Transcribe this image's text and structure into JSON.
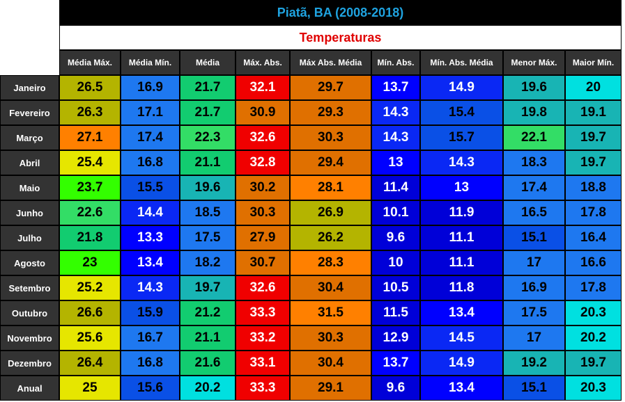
{
  "header": {
    "title": "Piatã, BA (2008-2018)",
    "subtitle": "Temperaturas"
  },
  "table": {
    "columns": [
      "Média Máx.",
      "Média Mín.",
      "Média",
      "Máx. Abs.",
      "Máx Abs. Média",
      "Mín. Abs.",
      "Mín. Abs. Média",
      "Menor Máx.",
      "Maior Mín."
    ],
    "rows": [
      {
        "label": "Janeiro",
        "values": [
          26.5,
          16.9,
          21.7,
          32.1,
          29.7,
          13.7,
          14.9,
          19.6,
          20
        ],
        "colors": [
          "#b4b400",
          "#1e78f0",
          "#12cc70",
          "#f00000",
          "#e07000",
          "#0000ff",
          "#0a28f4",
          "#18b4b4",
          "#00e0e0"
        ]
      },
      {
        "label": "Fevereiro",
        "values": [
          26.3,
          17.1,
          21.7,
          30.9,
          29.3,
          14.3,
          15.4,
          19.8,
          19.1
        ],
        "colors": [
          "#b4b400",
          "#1e78f0",
          "#12cc70",
          "#e07000",
          "#e07000",
          "#0a28f4",
          "#0a50e6",
          "#18b4b4",
          "#18b4b4"
        ]
      },
      {
        "label": "Março",
        "values": [
          27.1,
          17.4,
          22.3,
          32.6,
          30.3,
          14.3,
          15.7,
          22.1,
          19.7
        ],
        "colors": [
          "#ff8000",
          "#1e78f0",
          "#33dd66",
          "#f00000",
          "#e07000",
          "#0a28f4",
          "#0a50e6",
          "#33dd66",
          "#18b4b4"
        ]
      },
      {
        "label": "Abril",
        "values": [
          25.4,
          16.8,
          21.1,
          32.8,
          29.4,
          13,
          14.3,
          18.3,
          19.7
        ],
        "colors": [
          "#e6e600",
          "#1e78f0",
          "#12cc70",
          "#f00000",
          "#e07000",
          "#0000ff",
          "#0a28f4",
          "#1e78f0",
          "#18b4b4"
        ]
      },
      {
        "label": "Maio",
        "values": [
          23.7,
          15.5,
          19.6,
          30.2,
          28.1,
          11.4,
          13,
          17.4,
          18.8
        ],
        "colors": [
          "#33ff00",
          "#0a50e6",
          "#18b4b4",
          "#e07000",
          "#ff8000",
          "#0000d8",
          "#0000ff",
          "#1e78f0",
          "#1e78f0"
        ]
      },
      {
        "label": "Junho",
        "values": [
          22.6,
          14.4,
          18.5,
          30.3,
          26.9,
          10.1,
          11.9,
          16.5,
          17.8
        ],
        "colors": [
          "#33dd66",
          "#0a28f4",
          "#1e78f0",
          "#e07000",
          "#b4b400",
          "#0000d8",
          "#0000d8",
          "#1e78f0",
          "#1e78f0"
        ]
      },
      {
        "label": "Julho",
        "values": [
          21.8,
          13.3,
          17.5,
          27.9,
          26.2,
          9.6,
          11.1,
          15.1,
          16.4
        ],
        "colors": [
          "#12cc70",
          "#0000ff",
          "#1e78f0",
          "#e07000",
          "#b4b400",
          "#0000d8",
          "#0000d8",
          "#0a50e6",
          "#1e78f0"
        ]
      },
      {
        "label": "Agosto",
        "values": [
          23,
          13.4,
          18.2,
          30.7,
          28.3,
          10,
          11.1,
          17,
          16.6
        ],
        "colors": [
          "#33ff00",
          "#0000ff",
          "#1e78f0",
          "#e07000",
          "#ff8000",
          "#0000d8",
          "#0000d8",
          "#1e78f0",
          "#1e78f0"
        ]
      },
      {
        "label": "Setembro",
        "values": [
          25.2,
          14.3,
          19.7,
          32.6,
          30.4,
          10.5,
          11.8,
          16.9,
          17.8
        ],
        "colors": [
          "#e6e600",
          "#0a28f4",
          "#18b4b4",
          "#f00000",
          "#e07000",
          "#0000d8",
          "#0000d8",
          "#1e78f0",
          "#1e78f0"
        ]
      },
      {
        "label": "Outubro",
        "values": [
          26.6,
          15.9,
          21.2,
          33.3,
          31.5,
          11.5,
          13.4,
          17.5,
          20.3
        ],
        "colors": [
          "#b4b400",
          "#0a50e6",
          "#12cc70",
          "#f00000",
          "#ff8000",
          "#0000d8",
          "#0000ff",
          "#1e78f0",
          "#00e0e0"
        ]
      },
      {
        "label": "Novembro",
        "values": [
          25.6,
          16.7,
          21.1,
          33.2,
          30.3,
          12.9,
          14.5,
          17,
          20.2
        ],
        "colors": [
          "#e6e600",
          "#1e78f0",
          "#12cc70",
          "#f00000",
          "#e07000",
          "#0000d8",
          "#0a28f4",
          "#1e78f0",
          "#00e0e0"
        ]
      },
      {
        "label": "Dezembro",
        "values": [
          26.4,
          16.8,
          21.6,
          33.1,
          30.4,
          13.7,
          14.9,
          19.2,
          19.7
        ],
        "colors": [
          "#b4b400",
          "#1e78f0",
          "#12cc70",
          "#f00000",
          "#e07000",
          "#0000ff",
          "#0a28f4",
          "#18b4b4",
          "#18b4b4"
        ]
      },
      {
        "label": "Anual",
        "values": [
          25,
          15.6,
          20.2,
          33.3,
          29.1,
          9.6,
          13.4,
          15.1,
          20.3
        ],
        "colors": [
          "#e6e600",
          "#0a50e6",
          "#00e0e0",
          "#f00000",
          "#e07000",
          "#0000d8",
          "#0000ff",
          "#0a50e6",
          "#00e0e0"
        ]
      }
    ]
  }
}
